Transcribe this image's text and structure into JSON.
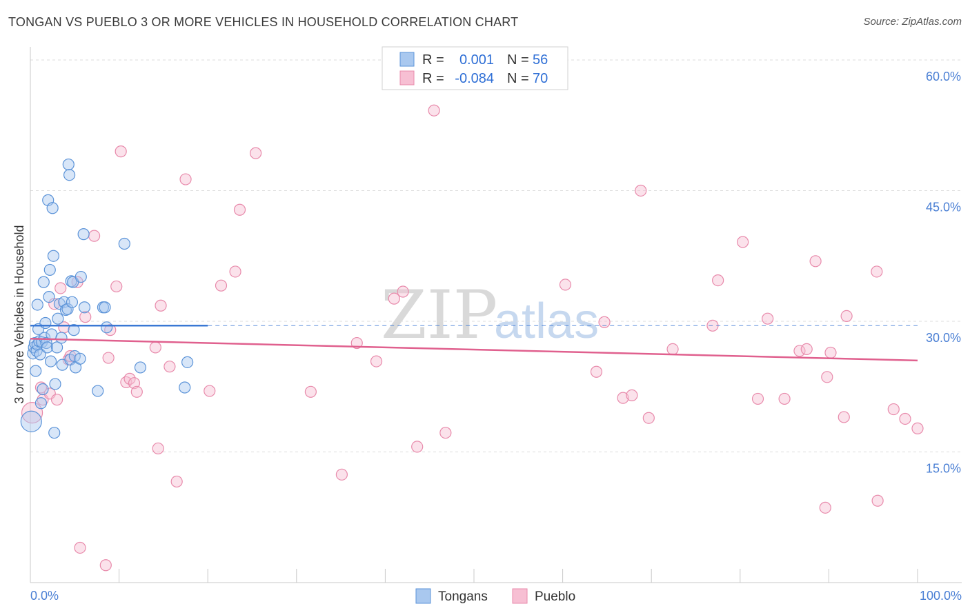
{
  "title": "TONGAN VS PUEBLO 3 OR MORE VEHICLES IN HOUSEHOLD CORRELATION CHART",
  "source": "Source: ZipAtlas.com",
  "watermark": {
    "part1": "ZIP",
    "part2": "atlas"
  },
  "colors": {
    "tongans_fill": "#a9c8ef",
    "tongans_stroke": "#5b93d8",
    "tongans_line": "#3a78d4",
    "pueblo_fill": "#f7bfd3",
    "pueblo_stroke": "#e88aab",
    "pueblo_line": "#e0608e",
    "axis_text": "#4a7fd4",
    "grid": "#dcdcdc"
  },
  "legend": {
    "row1": {
      "r_label": "R =",
      "r_value": "0.001",
      "n_label": "N =",
      "n_value": "56"
    },
    "row2": {
      "r_label": "R =",
      "r_value": "-0.084",
      "n_label": "N =",
      "n_value": "70"
    }
  },
  "bottom_legend": {
    "tongans": "Tongans",
    "pueblo": "Pueblo"
  },
  "chart_data": {
    "type": "scatter",
    "title": "TONGAN VS PUEBLO 3 OR MORE VEHICLES IN HOUSEHOLD CORRELATION CHART",
    "xlabel": "",
    "ylabel": "3 or more Vehicles in Household",
    "xlim": [
      0,
      100
    ],
    "ylim": [
      0,
      61.5
    ],
    "x_tick_labels": {
      "left": "0.0%",
      "right": "100.0%"
    },
    "y_ticks": [
      {
        "value": 15,
        "label": "15.0%"
      },
      {
        "value": 30,
        "label": "30.0%"
      },
      {
        "value": 45,
        "label": "45.0%"
      },
      {
        "value": 60,
        "label": "60.0%"
      }
    ],
    "grid": true,
    "legend_position": "top-center",
    "series": [
      {
        "name": "Tongans",
        "r": 0.001,
        "n": 56,
        "trend": {
          "x0": 0,
          "y0": 29.5,
          "x1": 20,
          "y1": 29.5,
          "dashed_to": 100
        },
        "points": [
          [
            0.1,
            18.5,
            15
          ],
          [
            0.3,
            26.3,
            8
          ],
          [
            0.4,
            27.0,
            8
          ],
          [
            0.5,
            27.5,
            8
          ],
          [
            0.6,
            24.3,
            8
          ],
          [
            0.7,
            26.6,
            8
          ],
          [
            0.8,
            31.9,
            8
          ],
          [
            0.8,
            27.3,
            8
          ],
          [
            0.9,
            29.1,
            8
          ],
          [
            1.0,
            27.7,
            8
          ],
          [
            1.1,
            26.2,
            8
          ],
          [
            1.2,
            20.6,
            8
          ],
          [
            1.3,
            27.6,
            8
          ],
          [
            1.4,
            22.2,
            8
          ],
          [
            1.5,
            34.5,
            8
          ],
          [
            1.6,
            28.1,
            8
          ],
          [
            1.7,
            29.8,
            8
          ],
          [
            1.8,
            27.5,
            8
          ],
          [
            1.9,
            27.0,
            8
          ],
          [
            2.0,
            43.9,
            8
          ],
          [
            2.1,
            32.8,
            8
          ],
          [
            2.2,
            35.9,
            8
          ],
          [
            2.3,
            25.4,
            8
          ],
          [
            2.4,
            28.5,
            8
          ],
          [
            2.5,
            43.0,
            8
          ],
          [
            2.6,
            37.5,
            8
          ],
          [
            2.7,
            17.2,
            8
          ],
          [
            2.8,
            22.8,
            8
          ],
          [
            3.0,
            27.0,
            8
          ],
          [
            3.1,
            30.3,
            8
          ],
          [
            3.3,
            32.0,
            8
          ],
          [
            3.5,
            28.1,
            8
          ],
          [
            3.6,
            25.0,
            8
          ],
          [
            3.8,
            32.2,
            8
          ],
          [
            4.0,
            31.3,
            8
          ],
          [
            4.2,
            31.4,
            8
          ],
          [
            4.3,
            48.0,
            8
          ],
          [
            4.4,
            46.8,
            8
          ],
          [
            4.5,
            25.6,
            8
          ],
          [
            4.6,
            34.6,
            8
          ],
          [
            4.7,
            32.2,
            8
          ],
          [
            4.8,
            34.5,
            8
          ],
          [
            4.9,
            29.0,
            8
          ],
          [
            5.0,
            26.0,
            8
          ],
          [
            5.1,
            24.7,
            8
          ],
          [
            5.6,
            25.7,
            8
          ],
          [
            5.7,
            35.1,
            8
          ],
          [
            6.0,
            40.0,
            8
          ],
          [
            6.1,
            31.6,
            8
          ],
          [
            7.6,
            22.0,
            8
          ],
          [
            8.2,
            31.6,
            8
          ],
          [
            8.4,
            31.6,
            8
          ],
          [
            8.6,
            29.3,
            8
          ],
          [
            10.6,
            38.9,
            8
          ],
          [
            12.4,
            24.7,
            8
          ],
          [
            17.4,
            22.4,
            8
          ],
          [
            17.7,
            25.3,
            8
          ]
        ]
      },
      {
        "name": "Pueblo",
        "r": -0.084,
        "n": 70,
        "trend": {
          "x0": 0,
          "y0": 28.0,
          "x1": 100,
          "y1": 25.5
        },
        "points": [
          [
            0.2,
            19.5,
            15
          ],
          [
            1.2,
            22.4,
            8
          ],
          [
            1.4,
            21.0,
            8
          ],
          [
            2.2,
            21.7,
            8
          ],
          [
            2.7,
            32.0,
            8
          ],
          [
            3.0,
            21.0,
            8
          ],
          [
            3.4,
            33.8,
            8
          ],
          [
            3.8,
            29.3,
            8
          ],
          [
            4.3,
            25.6,
            8
          ],
          [
            4.5,
            26.0,
            8
          ],
          [
            5.3,
            34.5,
            8
          ],
          [
            5.6,
            4.0,
            8
          ],
          [
            6.2,
            30.5,
            8
          ],
          [
            7.2,
            39.8,
            8
          ],
          [
            8.5,
            2.0,
            8
          ],
          [
            8.8,
            25.8,
            8
          ],
          [
            9.0,
            29.0,
            8
          ],
          [
            9.7,
            34.0,
            8
          ],
          [
            10.2,
            49.5,
            8
          ],
          [
            10.8,
            23.0,
            8
          ],
          [
            11.2,
            23.4,
            8
          ],
          [
            11.7,
            22.9,
            8
          ],
          [
            12.0,
            21.9,
            8
          ],
          [
            14.1,
            27.0,
            8
          ],
          [
            14.4,
            15.4,
            8
          ],
          [
            14.7,
            31.8,
            8
          ],
          [
            15.7,
            24.8,
            8
          ],
          [
            16.5,
            11.6,
            8
          ],
          [
            17.5,
            46.3,
            8
          ],
          [
            20.2,
            22.0,
            8
          ],
          [
            21.5,
            34.1,
            8
          ],
          [
            23.1,
            35.7,
            8
          ],
          [
            23.6,
            42.8,
            8
          ],
          [
            25.4,
            49.3,
            8
          ],
          [
            31.6,
            21.9,
            8
          ],
          [
            35.1,
            12.4,
            8
          ],
          [
            36.8,
            27.5,
            8
          ],
          [
            39.0,
            25.4,
            8
          ],
          [
            41.0,
            32.6,
            8
          ],
          [
            42.0,
            33.4,
            8
          ],
          [
            43.6,
            15.6,
            8
          ],
          [
            45.5,
            54.2,
            8
          ],
          [
            46.8,
            17.2,
            8
          ],
          [
            60.3,
            34.2,
            8
          ],
          [
            63.8,
            24.2,
            8
          ],
          [
            64.7,
            29.9,
            8
          ],
          [
            66.8,
            21.2,
            8
          ],
          [
            67.8,
            21.5,
            8
          ],
          [
            68.8,
            45.0,
            8
          ],
          [
            69.7,
            18.9,
            8
          ],
          [
            72.4,
            26.8,
            8
          ],
          [
            76.9,
            29.5,
            8
          ],
          [
            77.5,
            34.7,
            8
          ],
          [
            80.3,
            39.1,
            8
          ],
          [
            82.0,
            21.1,
            8
          ],
          [
            83.1,
            30.3,
            8
          ],
          [
            85.0,
            21.1,
            8
          ],
          [
            86.7,
            26.6,
            8
          ],
          [
            87.5,
            26.8,
            8
          ],
          [
            88.5,
            36.9,
            8
          ],
          [
            89.6,
            8.6,
            8
          ],
          [
            89.8,
            23.6,
            8
          ],
          [
            90.2,
            26.4,
            8
          ],
          [
            91.7,
            19.0,
            8
          ],
          [
            92.0,
            30.6,
            8
          ],
          [
            95.4,
            35.7,
            8
          ],
          [
            95.5,
            9.4,
            8
          ],
          [
            97.3,
            19.9,
            8
          ],
          [
            98.6,
            18.8,
            8
          ],
          [
            100.0,
            17.7,
            8
          ]
        ]
      }
    ]
  }
}
